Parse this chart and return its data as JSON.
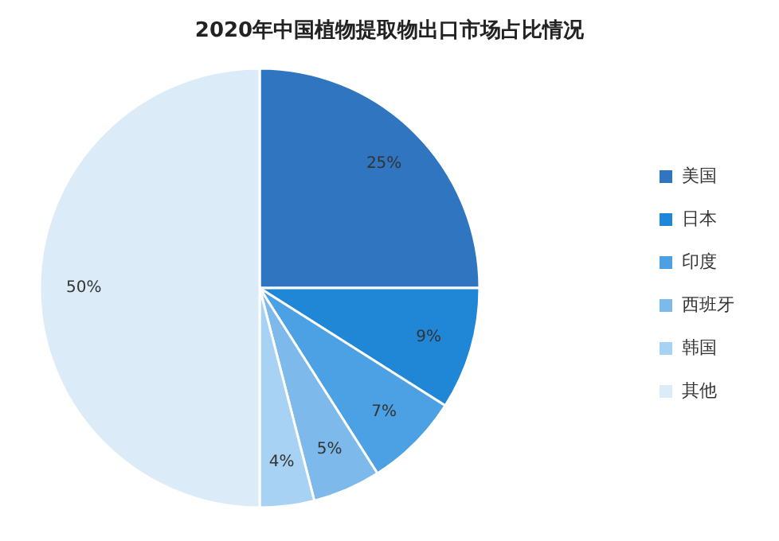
{
  "chart_data": {
    "type": "pie",
    "title": "2020年中国植物提取物出口市场占比情况",
    "categories": [
      "美国",
      "日本",
      "印度",
      "西班牙",
      "韩国",
      "其他"
    ],
    "values": [
      25,
      9,
      7,
      5,
      4,
      50
    ],
    "colors": [
      "#2f75c0",
      "#1f87d6",
      "#4ba1e3",
      "#7db9ea",
      "#a8d2f3",
      "#dcebf8"
    ],
    "value_labels": [
      "25%",
      "9%",
      "7%",
      "5%",
      "4%",
      "50%"
    ],
    "legend": "right"
  }
}
